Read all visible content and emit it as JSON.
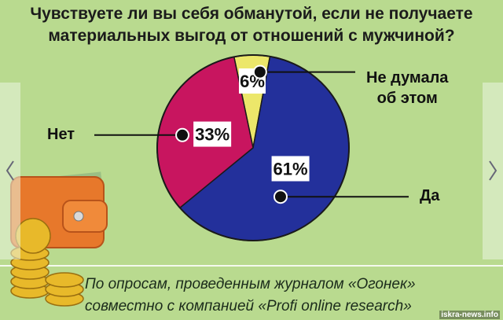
{
  "title": [
    "Чувствуете ли вы себя обманутой, если не получаете",
    "материальных выгод от отношений с мужчиной?"
  ],
  "chart_data": {
    "type": "pie",
    "categories": [
      "Не думала\nоб этом",
      "Да",
      "Нет"
    ],
    "values": [
      6,
      61,
      33
    ],
    "value_labels": [
      "6%",
      "61%",
      "33%"
    ],
    "colors": [
      "#ece76a",
      "#23309b",
      "#c8155f"
    ]
  },
  "footer": [
    "По опросам, проведенным журналом «Огонек»",
    "совместно с компанией «Profi online research»"
  ],
  "watermark": "iskra-news.info"
}
